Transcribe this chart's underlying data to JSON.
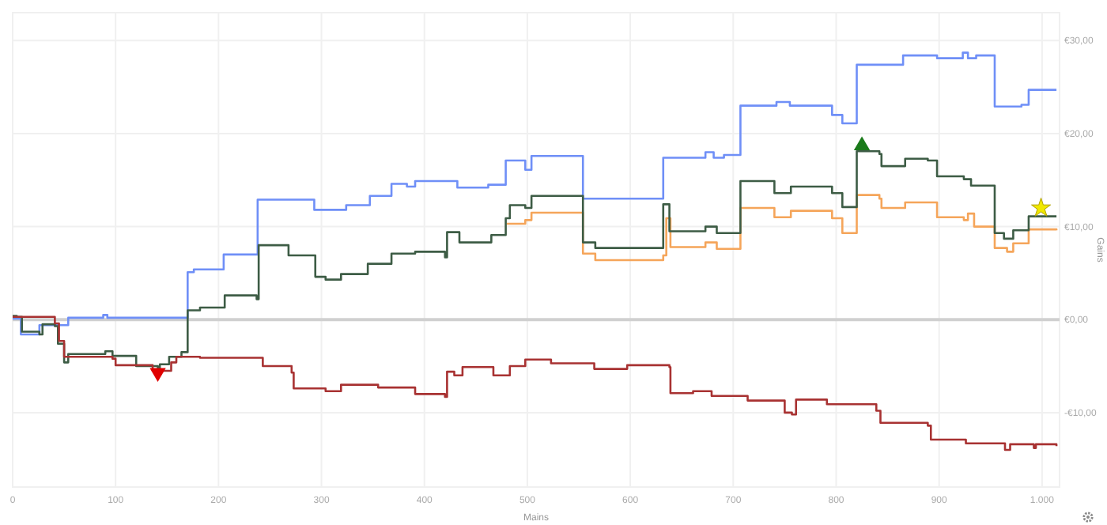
{
  "chart_data": {
    "type": "step",
    "xlabel": "Mains",
    "ylabel": "Gains",
    "xlim": [
      0,
      1017
    ],
    "ylim": [
      -18,
      33
    ],
    "xticks": [
      0,
      100,
      200,
      300,
      400,
      500,
      600,
      700,
      800,
      900,
      {
        "value": 1000,
        "label": "1.000"
      }
    ],
    "yticks": [
      {
        "value": -10,
        "label": "-€10,00"
      },
      {
        "value": 0,
        "label": "€0,00"
      },
      {
        "value": 10,
        "label": "€10,00"
      },
      {
        "value": 20,
        "label": "€20,00"
      },
      {
        "value": 30,
        "label": "€30,00"
      }
    ],
    "grid": true,
    "marker": "none",
    "line_style": "solid",
    "ref_lines": [
      {
        "axis": "y",
        "value": 0,
        "color": "#d0d0d0"
      }
    ],
    "series": [
      {
        "color": "#6f8ff7",
        "x": [
          0,
          8,
          26,
          54,
          88,
          92,
          170,
          176,
          205,
          238,
          293,
          324,
          347,
          368,
          383,
          391,
          432,
          462,
          479,
          498,
          504,
          554,
          632,
          673,
          681,
          691,
          707,
          742,
          755,
          796,
          806,
          820,
          865,
          898,
          923,
          928,
          936,
          954,
          980,
          987,
          1014
        ],
        "values": [
          0.1,
          -1.6,
          -0.6,
          0.2,
          0.5,
          0.2,
          5.1,
          5.4,
          7.0,
          12.9,
          11.8,
          12.3,
          13.3,
          14.6,
          14.3,
          14.9,
          14.2,
          14.5,
          17.1,
          16.1,
          17.6,
          13.0,
          17.4,
          18.0,
          17.4,
          17.7,
          23.0,
          23.4,
          23.0,
          22.0,
          21.1,
          27.4,
          28.4,
          28.1,
          28.7,
          28.1,
          28.4,
          22.9,
          23.1,
          24.7,
          24.7
        ]
      },
      {
        "color": "#f5a55a",
        "x": [
          480,
          498,
          504,
          554,
          566,
          632,
          635,
          639,
          673,
          684,
          707,
          740,
          756,
          796,
          806,
          820,
          842,
          844,
          867,
          898,
          924,
          928,
          934,
          954,
          966,
          972,
          987,
          1014
        ],
        "values": [
          10.3,
          10.7,
          11.5,
          7.1,
          6.4,
          6.9,
          10.9,
          7.8,
          8.3,
          7.6,
          12.0,
          11.0,
          11.7,
          10.9,
          9.3,
          13.4,
          13.0,
          12.0,
          12.6,
          11.0,
          10.7,
          11.4,
          10.0,
          7.7,
          7.3,
          8.2,
          9.7,
          9.6
        ]
      },
      {
        "color": "#3d5c45",
        "x": [
          0,
          4,
          9,
          26,
          29,
          41,
          44,
          50,
          54,
          90,
          97,
          120,
          141,
          143,
          152,
          164,
          170,
          182,
          206,
          237,
          239,
          268,
          294,
          304,
          319,
          345,
          368,
          391,
          420,
          422,
          434,
          465,
          479,
          483,
          498,
          504,
          554,
          566,
          632,
          638,
          673,
          684,
          707,
          740,
          756,
          796,
          806,
          820,
          842,
          844,
          867,
          889,
          898,
          924,
          931,
          954,
          963,
          972,
          987,
          1014
        ],
        "values": [
          0.4,
          0.3,
          -1.3,
          -1.6,
          -0.5,
          -0.7,
          -2.6,
          -4.6,
          -3.7,
          -3.4,
          -3.9,
          -5.0,
          -5.3,
          -4.8,
          -4.0,
          -3.5,
          1.0,
          1.3,
          2.6,
          2.2,
          8.0,
          6.9,
          4.6,
          4.3,
          4.9,
          6.0,
          7.1,
          7.3,
          6.7,
          9.4,
          8.3,
          9.1,
          10.9,
          12.3,
          12.0,
          13.3,
          8.3,
          7.7,
          12.4,
          9.5,
          10.0,
          9.3,
          14.9,
          13.6,
          14.3,
          13.6,
          12.1,
          18.1,
          17.8,
          16.5,
          17.3,
          17.1,
          15.4,
          15.1,
          14.4,
          9.3,
          8.7,
          9.6,
          11.1,
          11.1
        ]
      },
      {
        "color": "#a83232",
        "x": [
          0,
          30,
          41,
          45,
          50,
          97,
          100,
          136,
          154,
          159,
          182,
          243,
          271,
          273,
          304,
          319,
          355,
          391,
          420,
          422,
          429,
          437,
          467,
          483,
          498,
          523,
          561,
          565,
          597,
          638,
          639,
          661,
          679,
          714,
          750,
          757,
          761,
          791,
          839,
          843,
          889,
          892,
          926,
          964,
          969,
          992,
          994,
          1014
        ],
        "values": [
          0.3,
          0.3,
          -0.4,
          -2.3,
          -4.0,
          -4.2,
          -4.9,
          -5.5,
          -4.6,
          -4.0,
          -4.1,
          -5.0,
          -5.7,
          -7.4,
          -7.7,
          -7.0,
          -7.3,
          -8.0,
          -8.3,
          -5.6,
          -6.0,
          -5.1,
          -6.0,
          -5.0,
          -4.3,
          -4.7,
          -4.7,
          -5.3,
          -4.9,
          -5.1,
          -7.9,
          -7.7,
          -8.2,
          -8.7,
          -10.0,
          -10.2,
          -8.6,
          -9.1,
          -9.8,
          -11.1,
          -11.4,
          -12.9,
          -13.3,
          -14.0,
          -13.4,
          -13.8,
          -13.4,
          -13.6
        ]
      },
      {
        "type": "scatter",
        "marker": "triangle-down",
        "color": "#e00000",
        "x": [
          141
        ],
        "values": [
          -5.7
        ]
      },
      {
        "type": "scatter",
        "marker": "triangle",
        "color": "#1a7a1a",
        "x": [
          825
        ],
        "values": [
          18.7
        ]
      },
      {
        "type": "scatter",
        "marker": "star",
        "color": "#f0e800",
        "x": [
          999
        ],
        "values": [
          12.0
        ]
      }
    ]
  }
}
